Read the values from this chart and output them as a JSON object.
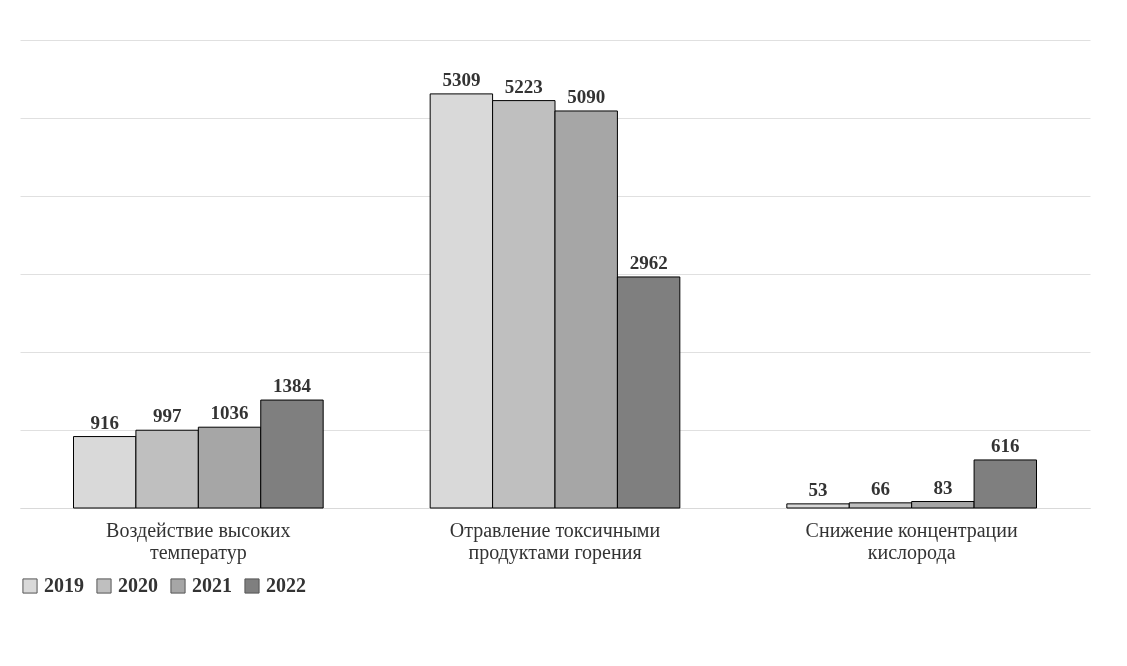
{
  "chart_data": {
    "type": "bar",
    "categories": [
      "Воздействие высоких температур",
      "Отравление токсичными продуктами горения",
      "Снижение концентрации кислорода"
    ],
    "series": [
      {
        "name": "2019",
        "color": "#d9d9d9",
        "values": [
          916,
          5309,
          53
        ]
      },
      {
        "name": "2020",
        "color": "#bfbfbf",
        "values": [
          997,
          5223,
          66
        ]
      },
      {
        "name": "2021",
        "color": "#a6a6a6",
        "values": [
          1036,
          5090,
          83
        ]
      },
      {
        "name": "2022",
        "color": "#7f7f7f",
        "values": [
          1384,
          2962,
          616
        ]
      }
    ],
    "ylim": [
      0,
      6000
    ],
    "yticks": [
      {
        "value": 0,
        "label": null
      },
      {
        "value": 1000,
        "label": null
      },
      {
        "value": 2000,
        "label": null
      },
      {
        "value": 3000,
        "label": null
      },
      {
        "value": 4000,
        "label": null
      },
      {
        "value": 5000,
        "label": null
      },
      {
        "value": 6000,
        "label": null
      }
    ],
    "tick_labels": "x",
    "grid": "y",
    "legend": "bottom",
    "data_labels": true
  }
}
